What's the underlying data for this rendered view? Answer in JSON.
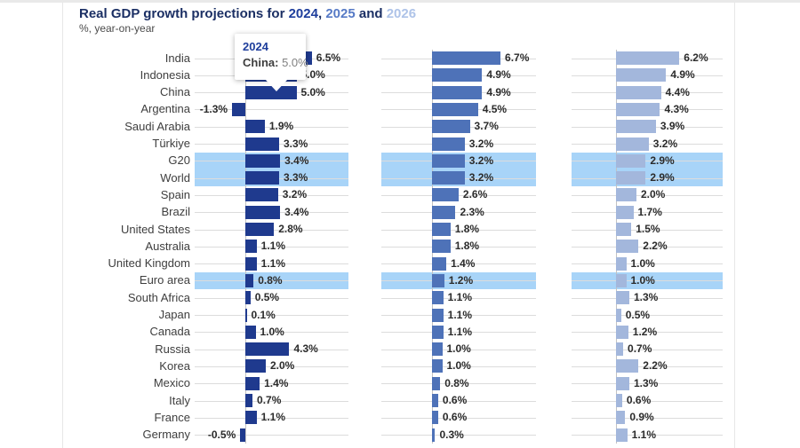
{
  "title": {
    "prefix": "Real GDP growth projections for ",
    "year1": "2024",
    "sep1": ", ",
    "year2": "2025",
    "sep2": " and ",
    "year3": "2026"
  },
  "subtitle": "%, year-on-year",
  "tooltip": {
    "year": "2024",
    "series_label": "China:",
    "value": "5.0%"
  },
  "colors": {
    "bar_2024": "#1f3a8e",
    "bar_2025": "#4e72b8",
    "bar_2026": "#a3b7dc",
    "row_highlight": "#a8d4f8",
    "title_2024": "#1e3e9c",
    "title_2025": "#567ac6",
    "title_2026": "#aec3e8"
  },
  "chart_data": {
    "type": "bar",
    "orientation": "horizontal",
    "title": "Real GDP growth projections for 2024, 2025 and 2026",
    "subtitle": "%, year-on-year",
    "value_suffix": "%",
    "grid": true,
    "categories": [
      "India",
      "Indonesia",
      "China",
      "Argentina",
      "Saudi Arabia",
      "Türkiye",
      "G20",
      "World",
      "Spain",
      "Brazil",
      "United States",
      "Australia",
      "United Kingdom",
      "Euro area",
      "South Africa",
      "Japan",
      "Canada",
      "Russia",
      "Korea",
      "Mexico",
      "Italy",
      "France",
      "Germany"
    ],
    "highlighted_categories": [
      "G20",
      "World",
      "Euro area"
    ],
    "series": [
      {
        "name": "2024",
        "color": "#1f3a8e",
        "values": [
          6.5,
          5.0,
          5.0,
          -1.3,
          1.9,
          3.3,
          3.4,
          3.3,
          3.2,
          3.4,
          2.8,
          1.1,
          1.1,
          0.8,
          0.5,
          0.1,
          1.0,
          4.3,
          2.0,
          1.4,
          0.7,
          1.1,
          -0.5
        ]
      },
      {
        "name": "2025",
        "color": "#4e72b8",
        "values": [
          6.7,
          4.9,
          4.9,
          4.5,
          3.7,
          3.2,
          3.2,
          3.2,
          2.6,
          2.3,
          1.8,
          1.8,
          1.4,
          1.2,
          1.1,
          1.1,
          1.1,
          1.0,
          1.0,
          0.8,
          0.6,
          0.6,
          0.3
        ]
      },
      {
        "name": "2026",
        "color": "#a3b7dc",
        "values": [
          6.2,
          4.9,
          4.4,
          4.3,
          3.9,
          3.2,
          2.9,
          2.9,
          2.0,
          1.7,
          1.5,
          2.2,
          1.0,
          1.0,
          1.3,
          0.5,
          1.2,
          0.7,
          2.2,
          1.3,
          0.6,
          0.9,
          1.1
        ]
      }
    ]
  }
}
